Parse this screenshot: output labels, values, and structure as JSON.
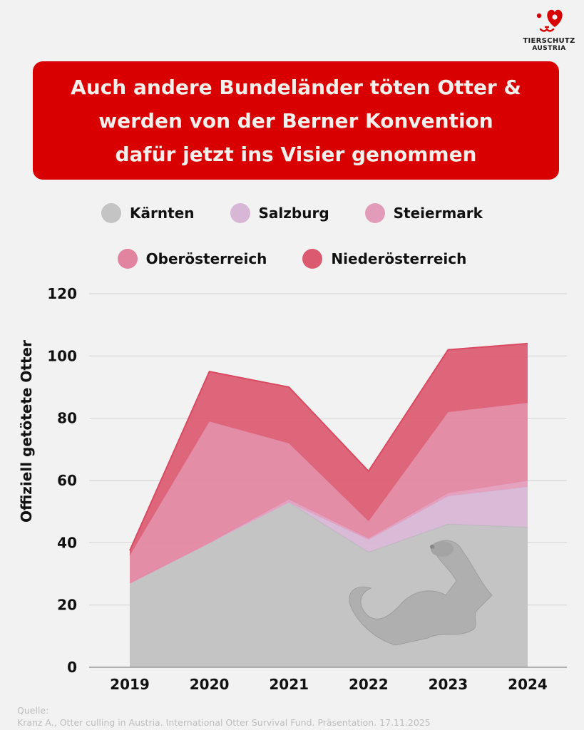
{
  "brand": {
    "name_line1": "TIERSCHUTZ",
    "name_line2": "AUSTRIA",
    "logo_icon": "dog-face-heart-icon",
    "color": "#d80000"
  },
  "banner": {
    "title_lines": [
      "Auch andere Bundeländer töten Otter &",
      "werden von der Berner Konvention",
      "dafür jetzt ins Visier genommen"
    ],
    "background": "#d80000"
  },
  "source": {
    "label": "Quelle:",
    "text": "Kranz A., Otter culling in Austria. International Otter Survival Fund. Präsentation. 17.11.2025"
  },
  "chart_data": {
    "type": "area",
    "stacked": true,
    "title": "Auch andere Bundeländer töten Otter & werden von der Berner Konvention dafür jetzt ins Visier genommen",
    "xlabel": "",
    "ylabel": "Offiziell getötete Otter",
    "x": [
      "2019",
      "2020",
      "2021",
      "2022",
      "2023",
      "2024"
    ],
    "ylim": [
      0,
      120
    ],
    "yticks": [
      0,
      20,
      40,
      60,
      80,
      100,
      120
    ],
    "grid": true,
    "legend_position": "top-center",
    "series": [
      {
        "name": "Kärnten",
        "color": "#c4c4c4",
        "values": [
          27,
          40,
          53,
          37,
          46,
          45
        ]
      },
      {
        "name": "Salzburg",
        "color": "#d7b6d6",
        "values": [
          0,
          0,
          0,
          4,
          9,
          13
        ]
      },
      {
        "name": "Steiermark",
        "color": "#e39bba",
        "values": [
          0,
          0,
          1,
          0.5,
          1,
          2
        ]
      },
      {
        "name": "Oberösterreich",
        "color": "#e2849f",
        "values": [
          9,
          39,
          18,
          5.5,
          26,
          25
        ]
      },
      {
        "name": "Niederösterreich",
        "color": "#dc5a70",
        "values": [
          1.5,
          16,
          18,
          16,
          20,
          19
        ]
      }
    ],
    "stacked_totals": [
      37.5,
      95,
      90,
      63,
      102,
      104
    ],
    "annotations": [
      "otter-illustration"
    ]
  }
}
